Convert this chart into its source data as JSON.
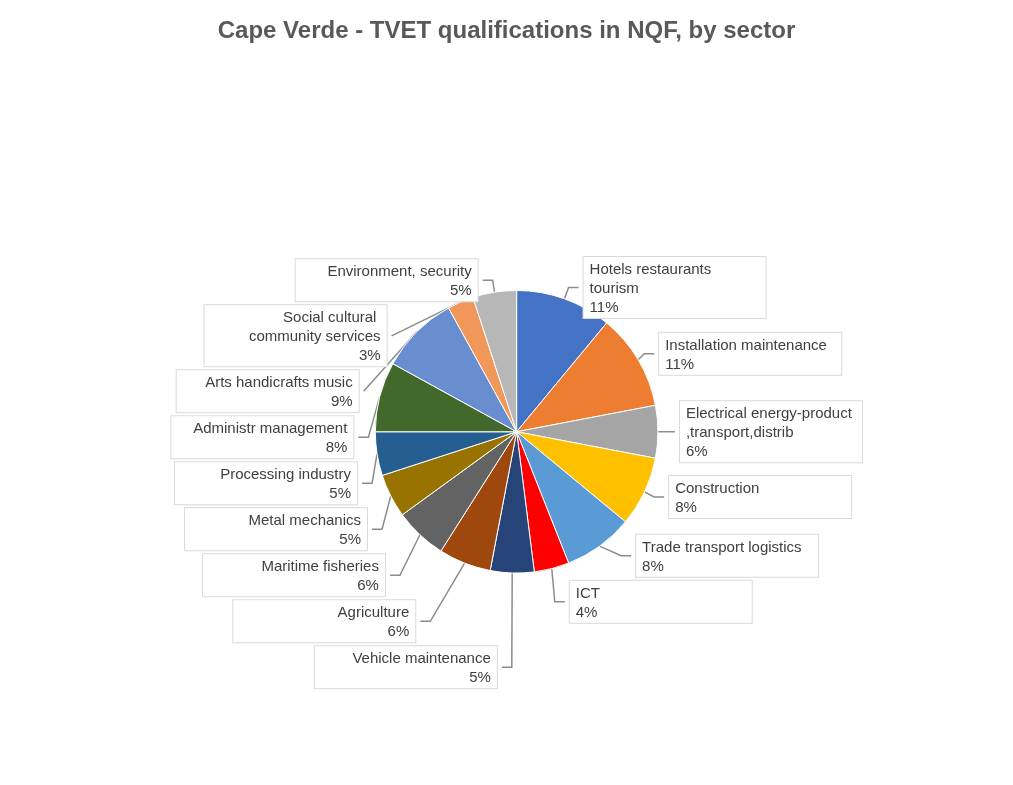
{
  "chart_data": {
    "type": "pie",
    "title": "Cape Verde - TVET qualifications in NQF, by sector",
    "categories": [
      "Hotels restaurants tourism",
      "Installation maintenance",
      "Electrical energy-product,transport,distrib",
      "Construction",
      "Trade transport logistics",
      "ICT",
      "Vehicle maintenance",
      "Agriculture",
      "Maritime fisheries",
      "Metal mechanics",
      "Processing industry",
      "Administr management",
      "Arts handicrafts music",
      "Social cultural community services",
      "Environment, security"
    ],
    "values": [
      11,
      11,
      6,
      8,
      8,
      4,
      5,
      6,
      6,
      5,
      5,
      8,
      9,
      3,
      5
    ],
    "value_labels": [
      "11%",
      "11%",
      "6%",
      "8%",
      "8%",
      "4%",
      "5%",
      "6%",
      "6%",
      "5%",
      "5%",
      "8%",
      "9%",
      "3%",
      "5%"
    ],
    "colors": [
      "#4472c4",
      "#ed7d31",
      "#a5a5a5",
      "#ffc000",
      "#5b9bd5",
      "#ff0000",
      "#264478",
      "#9e480e",
      "#636363",
      "#997300",
      "#255e91",
      "#43682b",
      "#698ed0",
      "#f1975a",
      "#b7b7b7"
    ],
    "legend": false
  }
}
